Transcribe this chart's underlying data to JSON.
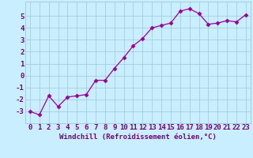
{
  "x": [
    0,
    1,
    2,
    3,
    4,
    5,
    6,
    7,
    8,
    9,
    10,
    11,
    12,
    13,
    14,
    15,
    16,
    17,
    18,
    19,
    20,
    21,
    22,
    23
  ],
  "y": [
    -3.0,
    -3.3,
    -1.7,
    -2.6,
    -1.8,
    -1.7,
    -1.6,
    -0.4,
    -0.4,
    0.6,
    1.5,
    2.5,
    3.1,
    4.0,
    4.2,
    4.4,
    5.4,
    5.6,
    5.2,
    4.3,
    4.4,
    4.6,
    4.5,
    5.1
  ],
  "line_color": "#990099",
  "marker": "D",
  "marker_size": 2.5,
  "xlabel": "Windchill (Refroidissement éolien,°C)",
  "xlim": [
    -0.5,
    23.5
  ],
  "ylim": [
    -4.0,
    6.2
  ],
  "yticks": [
    -3,
    -2,
    -1,
    0,
    1,
    2,
    3,
    4,
    5
  ],
  "xticks": [
    0,
    1,
    2,
    3,
    4,
    5,
    6,
    7,
    8,
    9,
    10,
    11,
    12,
    13,
    14,
    15,
    16,
    17,
    18,
    19,
    20,
    21,
    22,
    23
  ],
  "background_color": "#c8eeff",
  "grid_color": "#a0c8d8",
  "font_color": "#770077",
  "tick_fontsize": 6.5,
  "xlabel_fontsize": 6.5
}
